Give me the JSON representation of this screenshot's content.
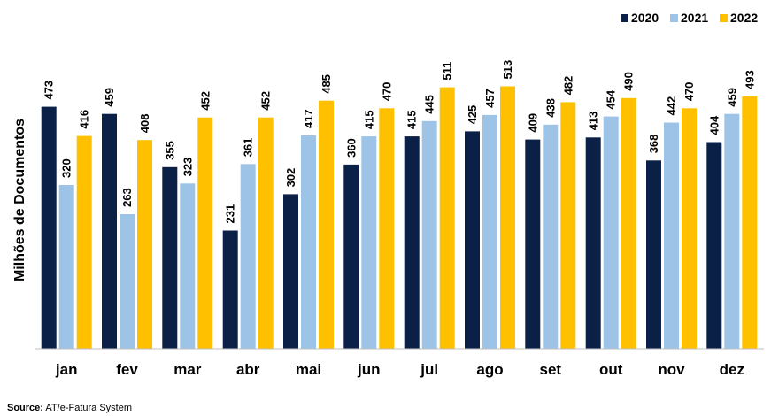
{
  "chart_data": {
    "type": "bar",
    "title": "",
    "xlabel": "",
    "ylabel": "Milhões de Documentos",
    "ylim": [
      0,
      520
    ],
    "grid": false,
    "legend_position": "top-right",
    "show_value_labels": true,
    "categories": [
      "jan",
      "fev",
      "mar",
      "abr",
      "mai",
      "jun",
      "jul",
      "ago",
      "set",
      "out",
      "nov",
      "dez"
    ],
    "series": [
      {
        "name": "2020",
        "color": "#0b2046",
        "values": [
          473,
          459,
          355,
          231,
          302,
          360,
          415,
          425,
          409,
          413,
          368,
          404
        ]
      },
      {
        "name": "2021",
        "color": "#9dc3e6",
        "values": [
          320,
          263,
          323,
          361,
          417,
          415,
          445,
          457,
          438,
          454,
          442,
          459
        ]
      },
      {
        "name": "2022",
        "color": "#ffc000",
        "values": [
          416,
          408,
          452,
          452,
          485,
          470,
          511,
          513,
          482,
          490,
          470,
          493
        ]
      }
    ]
  },
  "source": {
    "label": "Source:",
    "text": "AT/e-Fatura System"
  }
}
